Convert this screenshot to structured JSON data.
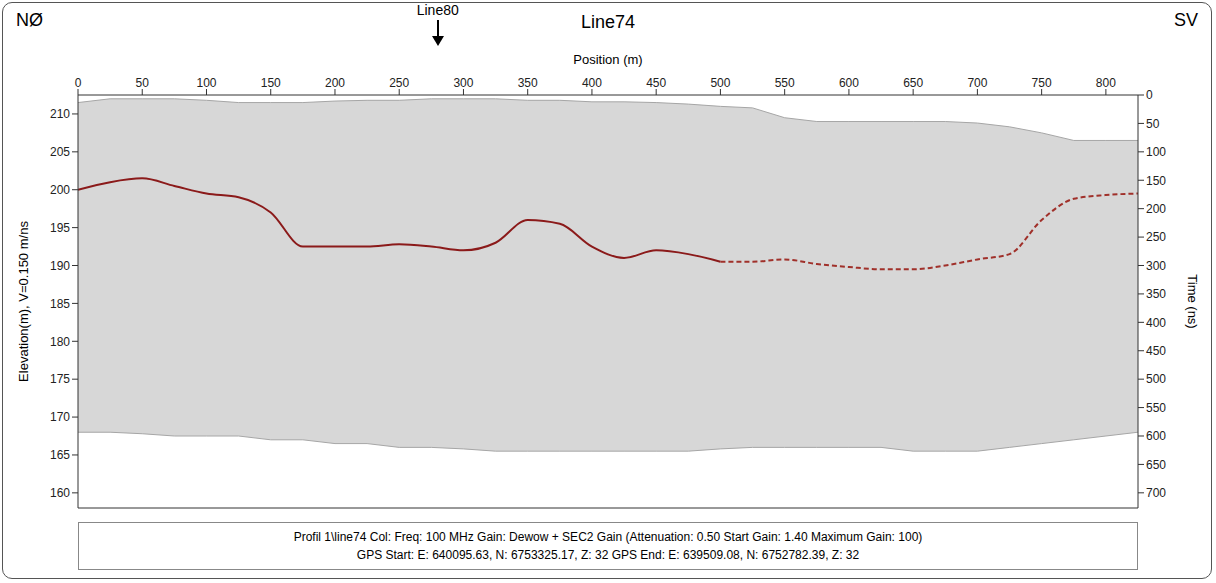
{
  "chart_data": {
    "type": "line",
    "title": "Line74",
    "direction_labels": [
      "NØ",
      "SV"
    ],
    "annotations": [
      {
        "text": "Line80",
        "x": 280
      }
    ],
    "xlabel": "Position (m)",
    "ylabel": "Elevation(m), V=0.150 m/ns",
    "y2label": "Time (ns)",
    "caption": [
      "Profil 1\\line74  Col:  Freq: 100 MHz Gain: Dewow + SEC2 Gain (Attenuation: 0.50 Start Gain: 1.40 Maximum Gain: 100)",
      "GPS Start: E: 640095.63, N: 6753325.17, Z: 32 GPS End: E: 639509.08, N: 6752782.39, Z: 32"
    ],
    "x": [
      0,
      25,
      50,
      75,
      100,
      125,
      150,
      175,
      200,
      225,
      250,
      275,
      300,
      325,
      350,
      375,
      400,
      425,
      450,
      475,
      500,
      525,
      550,
      575,
      600,
      625,
      650,
      675,
      700,
      725,
      750,
      775,
      800,
      825
    ],
    "xlim": [
      0,
      825
    ],
    "xticks": [
      0,
      50,
      100,
      150,
      200,
      250,
      300,
      350,
      400,
      450,
      500,
      550,
      600,
      650,
      700,
      750,
      800
    ],
    "ylim": [
      158,
      212.5
    ],
    "yticks": [
      160,
      165,
      170,
      175,
      180,
      185,
      190,
      195,
      200,
      205,
      210
    ],
    "y2lim": [
      0,
      726.7
    ],
    "y2ticks": [
      0,
      50,
      100,
      150,
      200,
      250,
      300,
      350,
      400,
      450,
      500,
      550,
      600,
      650,
      700
    ],
    "grid": false,
    "series": [
      {
        "type": "area",
        "color": "#a6a6a6",
        "values": [
          [
            168,
            211.5
          ],
          [
            168,
            212
          ],
          [
            167.8,
            212
          ],
          [
            167.5,
            212
          ],
          [
            167.5,
            211.8
          ],
          [
            167.5,
            211.5
          ],
          [
            167,
            211.5
          ],
          [
            167,
            211.5
          ],
          [
            166.5,
            211.7
          ],
          [
            166.5,
            211.8
          ],
          [
            166,
            211.8
          ],
          [
            166,
            212
          ],
          [
            165.8,
            212
          ],
          [
            165.5,
            212
          ],
          [
            165.5,
            211.8
          ],
          [
            165.5,
            211.8
          ],
          [
            165.5,
            211.6
          ],
          [
            165.5,
            211.6
          ],
          [
            165.5,
            211.5
          ],
          [
            165.5,
            211.3
          ],
          [
            165.8,
            211
          ],
          [
            166,
            210.8
          ],
          [
            166,
            209.5
          ],
          [
            166,
            209
          ],
          [
            166,
            209
          ],
          [
            166,
            209
          ],
          [
            165.5,
            209
          ],
          [
            165.5,
            209
          ],
          [
            165.5,
            208.8
          ],
          [
            166,
            208.3
          ],
          [
            166.5,
            207.5
          ],
          [
            167,
            206.5
          ],
          [
            167.5,
            206.5
          ],
          [
            168,
            206.5
          ]
        ]
      },
      {
        "type": "line",
        "color": "#8b1a1a",
        "line_style": "solid",
        "values": [
          200,
          201,
          201.5,
          200.5,
          199.5,
          199,
          197,
          192.5,
          192.5,
          192.5,
          192.8,
          192.5,
          192,
          193,
          196,
          195.5,
          192.5,
          191,
          192,
          191.5,
          190.5,
          null,
          null,
          null,
          null,
          null,
          null,
          null,
          null,
          null,
          null,
          null,
          null,
          null
        ]
      },
      {
        "type": "line",
        "color": "#a0302a",
        "line_style": "dashed",
        "values": [
          null,
          null,
          null,
          null,
          null,
          null,
          null,
          null,
          null,
          null,
          null,
          null,
          null,
          null,
          null,
          null,
          null,
          null,
          null,
          null,
          190.5,
          190.5,
          190.8,
          190.2,
          189.8,
          189.5,
          189.5,
          190,
          190.8,
          191.5,
          196,
          198.8,
          199.3,
          199.5
        ]
      }
    ]
  }
}
